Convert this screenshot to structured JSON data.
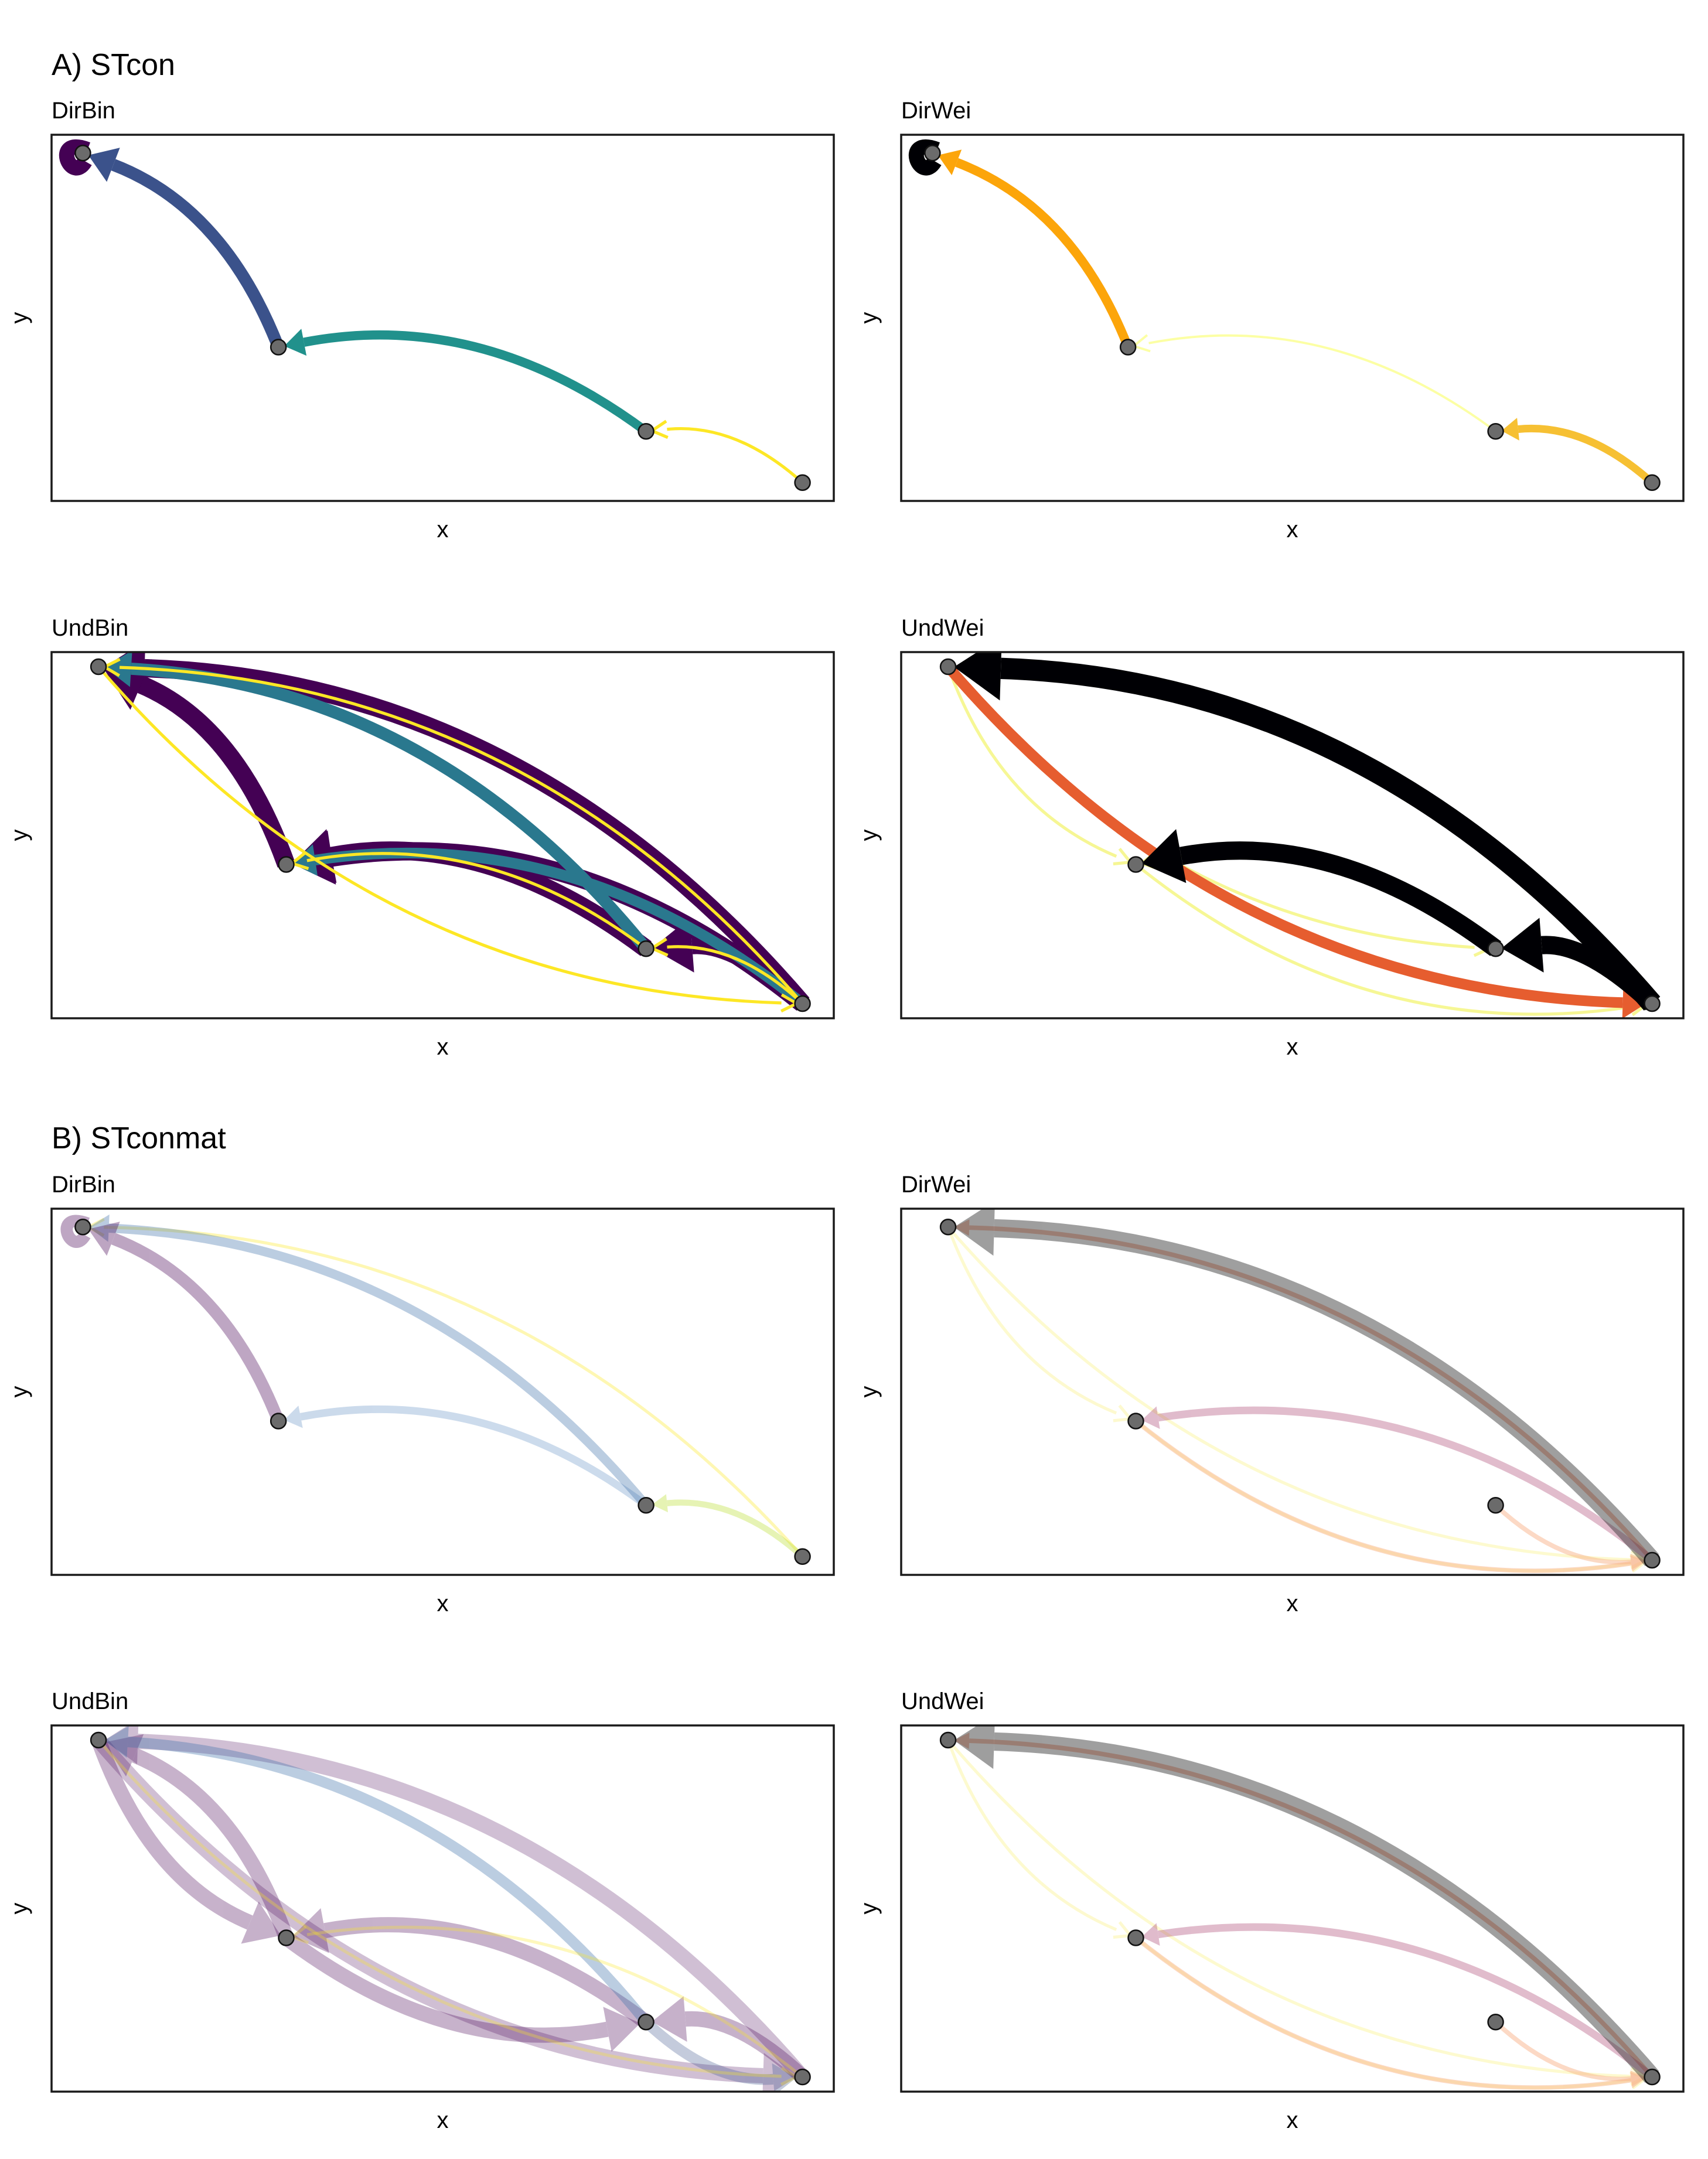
{
  "sections": [
    {
      "title": "A) STcon"
    },
    {
      "title": "B) STconmat"
    }
  ],
  "chart_data": [
    {
      "type": "network",
      "section": "A) STcon",
      "title": "DirBin",
      "xlabel": "x",
      "ylabel": "y",
      "nodes": [
        [
          0.04,
          0.95
        ],
        [
          0.29,
          0.42
        ],
        [
          0.76,
          0.19
        ],
        [
          0.96,
          0.05
        ]
      ],
      "edges": [
        {
          "from": 3,
          "to": 2,
          "color": "#FDE725",
          "w": 2,
          "alpha": 1
        },
        {
          "from": 2,
          "to": 1,
          "color": "#21918C",
          "w": 6,
          "alpha": 1
        },
        {
          "from": 1,
          "to": 0,
          "color": "#3B528B",
          "w": 8,
          "alpha": 1
        },
        {
          "from": 0,
          "to": 0,
          "color": "#440154",
          "w": 10,
          "alpha": 1,
          "loop": true
        }
      ]
    },
    {
      "type": "network",
      "section": "A) STcon",
      "title": "DirWei",
      "xlabel": "x",
      "ylabel": "y",
      "nodes": [
        [
          0.04,
          0.95
        ],
        [
          0.29,
          0.42
        ],
        [
          0.76,
          0.19
        ],
        [
          0.96,
          0.05
        ]
      ],
      "edges": [
        {
          "from": 2,
          "to": 1,
          "color": "#FCFFA4",
          "w": 1.5,
          "alpha": 1
        },
        {
          "from": 3,
          "to": 2,
          "color": "#F6C033",
          "w": 5,
          "alpha": 1
        },
        {
          "from": 1,
          "to": 0,
          "color": "#FCA50A",
          "w": 6,
          "alpha": 1
        },
        {
          "from": 0,
          "to": 0,
          "color": "#000004",
          "w": 10,
          "alpha": 1,
          "loop": true
        }
      ]
    },
    {
      "type": "network",
      "section": "A) STcon",
      "title": "UndBin",
      "xlabel": "x",
      "ylabel": "y",
      "nodes": [
        [
          0.06,
          0.96
        ],
        [
          0.3,
          0.42
        ],
        [
          0.76,
          0.19
        ],
        [
          0.96,
          0.04
        ]
      ],
      "edges": [
        {
          "from": 3,
          "to": 0,
          "color": "#440154",
          "w": 12,
          "alpha": 1
        },
        {
          "from": 3,
          "to": 1,
          "color": "#440154",
          "w": 12,
          "alpha": 1
        },
        {
          "from": 1,
          "to": 0,
          "color": "#440154",
          "w": 12,
          "alpha": 1
        },
        {
          "from": 2,
          "to": 1,
          "color": "#440154",
          "w": 12,
          "alpha": 1
        },
        {
          "from": 3,
          "to": 2,
          "color": "#440154",
          "w": 12,
          "alpha": 1
        },
        {
          "from": 2,
          "to": 0,
          "color": "#2A788E",
          "w": 8,
          "alpha": 1
        },
        {
          "from": 3,
          "to": 1,
          "color": "#2A788E",
          "w": 7,
          "alpha": 1
        },
        {
          "from": 3,
          "to": 0,
          "color": "#FDE725",
          "w": 2,
          "alpha": 1
        },
        {
          "from": 2,
          "to": 1,
          "color": "#FDE725",
          "w": 2,
          "alpha": 1
        },
        {
          "from": 0,
          "to": 3,
          "color": "#FDE725",
          "w": 2,
          "alpha": 1
        },
        {
          "from": 3,
          "to": 2,
          "color": "#FDE725",
          "w": 2,
          "alpha": 1
        }
      ]
    },
    {
      "type": "network",
      "section": "A) STcon",
      "title": "UndWei",
      "xlabel": "x",
      "ylabel": "y",
      "nodes": [
        [
          0.06,
          0.96
        ],
        [
          0.3,
          0.42
        ],
        [
          0.76,
          0.19
        ],
        [
          0.96,
          0.04
        ]
      ],
      "edges": [
        {
          "from": 0,
          "to": 1,
          "color": "#F4F57A",
          "w": 2,
          "alpha": 0.8
        },
        {
          "from": 1,
          "to": 3,
          "color": "#F4F57A",
          "w": 2,
          "alpha": 0.8
        },
        {
          "from": 0,
          "to": 2,
          "color": "#F4F57A",
          "w": 2,
          "alpha": 0.8
        },
        {
          "from": 2,
          "to": 1,
          "color": "#F4F57A",
          "w": 2,
          "alpha": 0.8
        },
        {
          "from": 0,
          "to": 3,
          "color": "#E65D2F",
          "w": 7,
          "alpha": 1
        },
        {
          "from": 3,
          "to": 0,
          "color": "#000004",
          "w": 14,
          "alpha": 1
        },
        {
          "from": 2,
          "to": 1,
          "color": "#000004",
          "w": 12,
          "alpha": 1
        },
        {
          "from": 3,
          "to": 2,
          "color": "#000004",
          "w": 12,
          "alpha": 1
        }
      ]
    },
    {
      "type": "network",
      "section": "B) STconmat",
      "title": "DirBin",
      "xlabel": "x",
      "ylabel": "y",
      "nodes": [
        [
          0.04,
          0.95
        ],
        [
          0.29,
          0.42
        ],
        [
          0.76,
          0.19
        ],
        [
          0.96,
          0.05
        ]
      ],
      "edges": [
        {
          "from": 3,
          "to": 0,
          "color": "#FDE725",
          "w": 2,
          "alpha": 0.35
        },
        {
          "from": 3,
          "to": 2,
          "color": "#B8DE29",
          "w": 4,
          "alpha": 0.35
        },
        {
          "from": 2,
          "to": 1,
          "color": "#6D97C8",
          "w": 5,
          "alpha": 0.35
        },
        {
          "from": 2,
          "to": 0,
          "color": "#3B6FA8",
          "w": 6,
          "alpha": 0.35
        },
        {
          "from": 1,
          "to": 0,
          "color": "#440154",
          "w": 8,
          "alpha": 0.35
        },
        {
          "from": 0,
          "to": 0,
          "color": "#440154",
          "w": 8,
          "alpha": 0.35,
          "loop": true
        }
      ]
    },
    {
      "type": "network",
      "section": "B) STconmat",
      "title": "DirWei",
      "xlabel": "x",
      "ylabel": "y",
      "nodes": [
        [
          0.06,
          0.95
        ],
        [
          0.3,
          0.42
        ],
        [
          0.76,
          0.19
        ],
        [
          0.96,
          0.04
        ]
      ],
      "edges": [
        {
          "from": 0,
          "to": 1,
          "color": "#FCF5A0",
          "w": 2,
          "alpha": 0.5
        },
        {
          "from": 0,
          "to": 3,
          "color": "#FCF5A0",
          "w": 2,
          "alpha": 0.5
        },
        {
          "from": 1,
          "to": 3,
          "color": "#FCF5A0",
          "w": 2,
          "alpha": 0.5
        },
        {
          "from": 2,
          "to": 3,
          "color": "#F9B48B",
          "w": 3,
          "alpha": 0.5
        },
        {
          "from": 1,
          "to": 3,
          "color": "#F9B48B",
          "w": 3,
          "alpha": 0.5
        },
        {
          "from": 3,
          "to": 0,
          "color": "#E8663A",
          "w": 3,
          "alpha": 0.4
        },
        {
          "from": 3,
          "to": 1,
          "color": "#A8406E",
          "w": 5,
          "alpha": 0.35
        },
        {
          "from": 3,
          "to": 0,
          "color": "#2B2B2B",
          "w": 12,
          "alpha": 0.45
        }
      ]
    },
    {
      "type": "network",
      "section": "B) STconmat",
      "title": "UndBin",
      "xlabel": "x",
      "ylabel": "y",
      "nodes": [
        [
          0.06,
          0.96
        ],
        [
          0.3,
          0.42
        ],
        [
          0.76,
          0.19
        ],
        [
          0.96,
          0.04
        ]
      ],
      "edges": [
        {
          "from": 3,
          "to": 0,
          "color": "#440154",
          "w": 10,
          "alpha": 0.25
        },
        {
          "from": 0,
          "to": 3,
          "color": "#440154",
          "w": 10,
          "alpha": 0.25
        },
        {
          "from": 1,
          "to": 0,
          "color": "#440154",
          "w": 10,
          "alpha": 0.3
        },
        {
          "from": 0,
          "to": 1,
          "color": "#440154",
          "w": 10,
          "alpha": 0.3
        },
        {
          "from": 2,
          "to": 1,
          "color": "#440154",
          "w": 10,
          "alpha": 0.3
        },
        {
          "from": 1,
          "to": 2,
          "color": "#440154",
          "w": 10,
          "alpha": 0.3
        },
        {
          "from": 3,
          "to": 2,
          "color": "#440154",
          "w": 10,
          "alpha": 0.3
        },
        {
          "from": 2,
          "to": 3,
          "color": "#3B528B",
          "w": 7,
          "alpha": 0.3
        },
        {
          "from": 2,
          "to": 0,
          "color": "#3B6FA8",
          "w": 7,
          "alpha": 0.35
        },
        {
          "from": 0,
          "to": 3,
          "color": "#FDE725",
          "w": 2,
          "alpha": 0.3
        },
        {
          "from": 3,
          "to": 1,
          "color": "#FDE725",
          "w": 2,
          "alpha": 0.3
        }
      ]
    },
    {
      "type": "network",
      "section": "B) STconmat",
      "title": "UndWei",
      "xlabel": "x",
      "ylabel": "y",
      "nodes": [
        [
          0.06,
          0.96
        ],
        [
          0.3,
          0.42
        ],
        [
          0.76,
          0.19
        ],
        [
          0.96,
          0.04
        ]
      ],
      "edges": [
        {
          "from": 0,
          "to": 1,
          "color": "#FCF5A0",
          "w": 2,
          "alpha": 0.5
        },
        {
          "from": 0,
          "to": 3,
          "color": "#FCF5A0",
          "w": 2,
          "alpha": 0.5
        },
        {
          "from": 1,
          "to": 3,
          "color": "#FCF5A0",
          "w": 2,
          "alpha": 0.5
        },
        {
          "from": 2,
          "to": 3,
          "color": "#F9B48B",
          "w": 3,
          "alpha": 0.5
        },
        {
          "from": 1,
          "to": 3,
          "color": "#F9B48B",
          "w": 3,
          "alpha": 0.5
        },
        {
          "from": 3,
          "to": 0,
          "color": "#E8663A",
          "w": 3,
          "alpha": 0.4
        },
        {
          "from": 3,
          "to": 1,
          "color": "#A8406E",
          "w": 5,
          "alpha": 0.35
        },
        {
          "from": 3,
          "to": 0,
          "color": "#2B2B2B",
          "w": 12,
          "alpha": 0.45
        }
      ]
    }
  ]
}
